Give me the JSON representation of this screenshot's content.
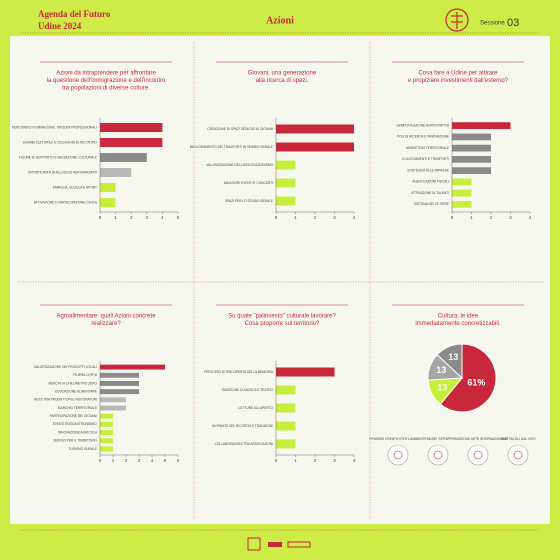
{
  "header": {
    "title": "Agenda del Futuro",
    "subtitle": "Udine 2024",
    "section": "Azioni",
    "session": "Sessione",
    "number": "03"
  },
  "chart_data": [
    {
      "type": "bar",
      "title_lines": [
        "Azioni da intraprendere per affrontare",
        "la questione dell'immigrazione e dell'incontro",
        "tra popolazioni di diverse culture."
      ],
      "categories": [
        "Percorsi di formazione, tirocini professionali",
        "Scambi culturali e occasioni di incontro",
        "Figure di supporto e mediazione culturale",
        "Opportunità di alloggio per immigrati",
        "Famiglia, scuola e sport",
        "Attivazione e partecipazione civica"
      ],
      "values": [
        4,
        4,
        3,
        2,
        1,
        1
      ],
      "colors": [
        "#c8283a",
        "#c8283a",
        "#8a8a8a",
        "#b9b9b9",
        "#c6ef3c",
        "#c6ef3c"
      ],
      "xlim": [
        0,
        5
      ],
      "xticks": [
        0,
        1,
        2,
        3,
        4,
        5
      ]
    },
    {
      "type": "bar",
      "title_lines": [
        "Giovani, una generazione",
        "alla ricerca di spazi."
      ],
      "categories": [
        "Creazione di spazi dedicati ai giovani",
        "Miglioramento dei trasporti in orario serale",
        "Valorizzazione dell'associazionismo",
        "Maggiori eventi e concerti",
        "Spazi per lo studio serale"
      ],
      "values": [
        4,
        4,
        1,
        1,
        1
      ],
      "colors": [
        "#c8283a",
        "#c8283a",
        "#c6ef3c",
        "#c6ef3c",
        "#c6ef3c"
      ],
      "xlim": [
        0,
        4
      ],
      "xticks": [
        0,
        1,
        2,
        3,
        4
      ]
    },
    {
      "type": "bar",
      "title_lines": [
        "Cosa fare a Udine per attirare",
        "e propiziare investimenti dall'esterno?"
      ],
      "categories": [
        "Semplificazione burocratica",
        "Poli di ricerca e innovazione",
        "Marketing territoriale",
        "Collegamenti e trasporti",
        "Sostegno alle imprese",
        "Agevolazioni fiscali",
        "Attrazione di talenti",
        "Sistema delle fiere"
      ],
      "values": [
        3,
        2,
        2,
        2,
        2,
        1,
        1,
        1
      ],
      "colors": [
        "#c8283a",
        "#8a8a8a",
        "#8a8a8a",
        "#8a8a8a",
        "#8a8a8a",
        "#c6ef3c",
        "#c6ef3c",
        "#c6ef3c"
      ],
      "xlim": [
        0,
        4
      ],
      "xticks": [
        0,
        1,
        2,
        3,
        4
      ]
    },
    {
      "type": "bar",
      "title_lines": [
        "Agroalimentare: quali Azioni concrete",
        "realizzare?"
      ],
      "categories": [
        "Valorizzazione dei prodotti locali",
        "Filiera corta",
        "Mercati a chilometro zero",
        "Educazione alimentare",
        "Rete tra produttori e ristoratori",
        "Marchio territoriale",
        "Partecipazione dei giovani",
        "Eventi enogastronomici",
        "Innovazione agricola",
        "Servizi per il territorio",
        "Turismo rurale"
      ],
      "values": [
        5,
        3,
        3,
        3,
        2,
        2,
        1,
        1,
        1,
        1,
        1
      ],
      "colors": [
        "#c8283a",
        "#8a8a8a",
        "#8a8a8a",
        "#8a8a8a",
        "#b9b9b9",
        "#b9b9b9",
        "#c6ef3c",
        "#c6ef3c",
        "#c6ef3c",
        "#c6ef3c",
        "#c6ef3c"
      ],
      "xlim": [
        0,
        6
      ],
      "xticks": [
        0,
        1,
        2,
        3,
        4,
        5,
        6
      ]
    },
    {
      "type": "bar",
      "title_lines": [
        "Su quale \"palinsesto\" culturale lavorare?",
        "Cosa proporre sul territorio?"
      ],
      "categories": [
        "Percorsi di riscoperta della memoria",
        "Rassegne di musica e teatro",
        "Letture all'aperto",
        "Giornate del ricordo e tradizioni",
        "Collaborazioni tra associazioni"
      ],
      "values": [
        3,
        1,
        1,
        1,
        1
      ],
      "colors": [
        "#c8283a",
        "#c6ef3c",
        "#c6ef3c",
        "#c6ef3c",
        "#c6ef3c"
      ],
      "xlim": [
        0,
        4
      ],
      "xticks": [
        0,
        1,
        2,
        3,
        4
      ]
    },
    {
      "type": "pie",
      "title_lines": [
        "Cultura: le idee",
        "immediatamente concretizzabili."
      ],
      "categories": [
        "Pensieri creativi per l'ambiente",
        "Musei \"open\"",
        "Promozione arte internazionale",
        "Spettacoli dal vivo"
      ],
      "values": [
        61,
        13,
        13,
        13
      ],
      "value_labels": [
        "61%",
        "13",
        "13",
        "13"
      ],
      "colors": [
        "#c8283a",
        "#c6ef3c",
        "#a5a5a5",
        "#8a8a8a"
      ]
    }
  ]
}
